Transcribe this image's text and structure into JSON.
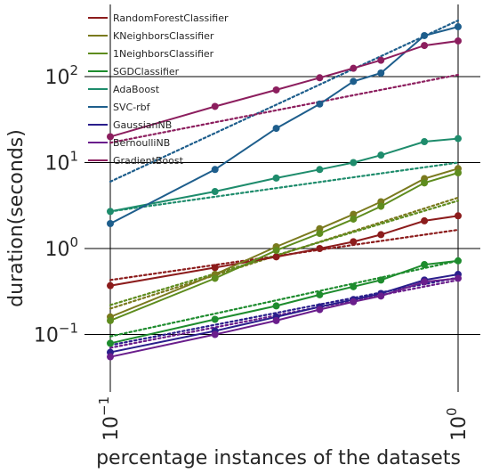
{
  "chart_data": {
    "type": "line",
    "xlabel": "percentage instances of the datasets",
    "ylabel": "duration(seconds)",
    "x_scale": "log",
    "y_scale": "log",
    "xlim": [
      0.1,
      1.0
    ],
    "ylim": [
      0.025,
      600
    ],
    "grid": "major",
    "legend_position": "top-left",
    "x_ticks": [
      {
        "value": 0.1,
        "base": "10",
        "exp": "−1"
      },
      {
        "value": 1.0,
        "base": "10",
        "exp": "0"
      }
    ],
    "y_ticks": [
      {
        "value": 0.1,
        "base": "10",
        "exp": "−1"
      },
      {
        "value": 1,
        "base": "10",
        "exp": "0"
      },
      {
        "value": 10,
        "base": "10",
        "exp": "1"
      },
      {
        "value": 100,
        "base": "10",
        "exp": "2"
      }
    ],
    "series": [
      {
        "name": "RandomForestClassifier",
        "color": "#8c1c1c",
        "x": [
          0.1,
          0.2,
          0.3,
          0.4,
          0.5,
          0.6,
          0.8,
          1.0
        ],
        "values": [
          0.37,
          0.6,
          0.8,
          1.0,
          1.2,
          1.45,
          2.1,
          2.4
        ],
        "trend": [
          0.43,
          1.65
        ]
      },
      {
        "name": "KNeighborsClassifier",
        "color": "#7a7a1e",
        "x": [
          0.1,
          0.2,
          0.3,
          0.4,
          0.5,
          0.6,
          0.8,
          1.0
        ],
        "values": [
          0.16,
          0.5,
          1.05,
          1.7,
          2.5,
          3.5,
          6.5,
          8.5
        ],
        "trend": [
          0.2,
          3.9
        ]
      },
      {
        "name": "1NeighborsClassifier",
        "color": "#5e8c1e",
        "x": [
          0.1,
          0.2,
          0.3,
          0.4,
          0.5,
          0.6,
          0.8,
          1.0
        ],
        "values": [
          0.145,
          0.45,
          0.95,
          1.5,
          2.2,
          3.1,
          5.8,
          7.6
        ],
        "trend": [
          0.22,
          3.6
        ]
      },
      {
        "name": "SGDClassifier",
        "color": "#1e8c2e",
        "x": [
          0.1,
          0.2,
          0.3,
          0.4,
          0.5,
          0.6,
          0.8,
          1.0
        ],
        "values": [
          0.079,
          0.15,
          0.215,
          0.29,
          0.36,
          0.43,
          0.65,
          0.72
        ],
        "trend": [
          0.095,
          0.72
        ]
      },
      {
        "name": "AdaBoost",
        "color": "#1e8c6c",
        "x": [
          0.1,
          0.2,
          0.3,
          0.4,
          0.5,
          0.6,
          0.8,
          1.0
        ],
        "values": [
          2.7,
          4.6,
          6.6,
          8.3,
          10.0,
          12.2,
          17.5,
          19.0
        ],
        "trend": [
          2.7,
          10.0
        ]
      },
      {
        "name": "SVC-rbf",
        "color": "#1e5e8c",
        "x": [
          0.1,
          0.2,
          0.3,
          0.4,
          0.5,
          0.6,
          0.8,
          1.0
        ],
        "values": [
          1.95,
          8.3,
          25.0,
          48.0,
          88.0,
          110.0,
          300.0,
          380.0
        ],
        "trend": [
          6.0,
          450.0
        ]
      },
      {
        "name": "GaussianNB",
        "color": "#2a1e8c",
        "x": [
          0.1,
          0.2,
          0.3,
          0.4,
          0.5,
          0.6,
          0.8,
          1.0
        ],
        "values": [
          0.062,
          0.11,
          0.16,
          0.21,
          0.255,
          0.3,
          0.43,
          0.5
        ],
        "trend": [
          0.075,
          0.46
        ]
      },
      {
        "name": "BernoulliNB",
        "color": "#6a1e8c",
        "x": [
          0.1,
          0.2,
          0.3,
          0.4,
          0.5,
          0.6,
          0.8,
          1.0
        ],
        "values": [
          0.055,
          0.1,
          0.145,
          0.195,
          0.24,
          0.28,
          0.41,
          0.45
        ],
        "trend": [
          0.07,
          0.43
        ]
      },
      {
        "name": "GradientBoost",
        "color": "#8c1e5e",
        "x": [
          0.1,
          0.2,
          0.3,
          0.4,
          0.5,
          0.6,
          0.8,
          1.0
        ],
        "values": [
          20.0,
          45.0,
          70.0,
          97.0,
          125.0,
          155.0,
          230.0,
          260.0
        ],
        "trend": [
          17.0,
          105.0
        ]
      }
    ]
  }
}
